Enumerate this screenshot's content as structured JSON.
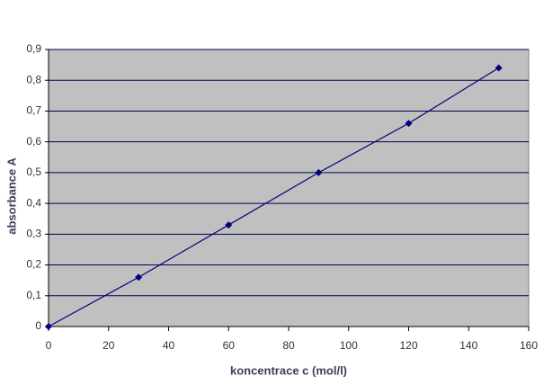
{
  "chart_data": {
    "type": "line",
    "x_label": "koncentrace c (mol/l)",
    "y_label": "absorbance A",
    "x": [
      0,
      30,
      60,
      90,
      120,
      150
    ],
    "values": [
      0,
      0.16,
      0.33,
      0.5,
      0.66,
      0.84
    ],
    "color": "#000080",
    "plot_background": "#c0c0c0",
    "grid_color": "#000050",
    "xlim": [
      0,
      160
    ],
    "xticks": [
      0,
      20,
      40,
      60,
      80,
      100,
      120,
      140,
      160
    ],
    "ylim": [
      0,
      0.9
    ],
    "yticks": [
      0,
      {
        "value": 0.1,
        "label": "0,1"
      },
      {
        "value": 0.2,
        "label": "0,2"
      },
      {
        "value": 0.3,
        "label": "0,3"
      },
      {
        "value": 0.4,
        "label": "0,4"
      },
      {
        "value": 0.5,
        "label": "0,5"
      },
      {
        "value": 0.6,
        "label": "0,6"
      },
      {
        "value": 0.7,
        "label": "0,7"
      },
      {
        "value": 0.8,
        "label": "0,8"
      },
      {
        "value": 0.9,
        "label": "0,9"
      }
    ],
    "grid": true
  }
}
